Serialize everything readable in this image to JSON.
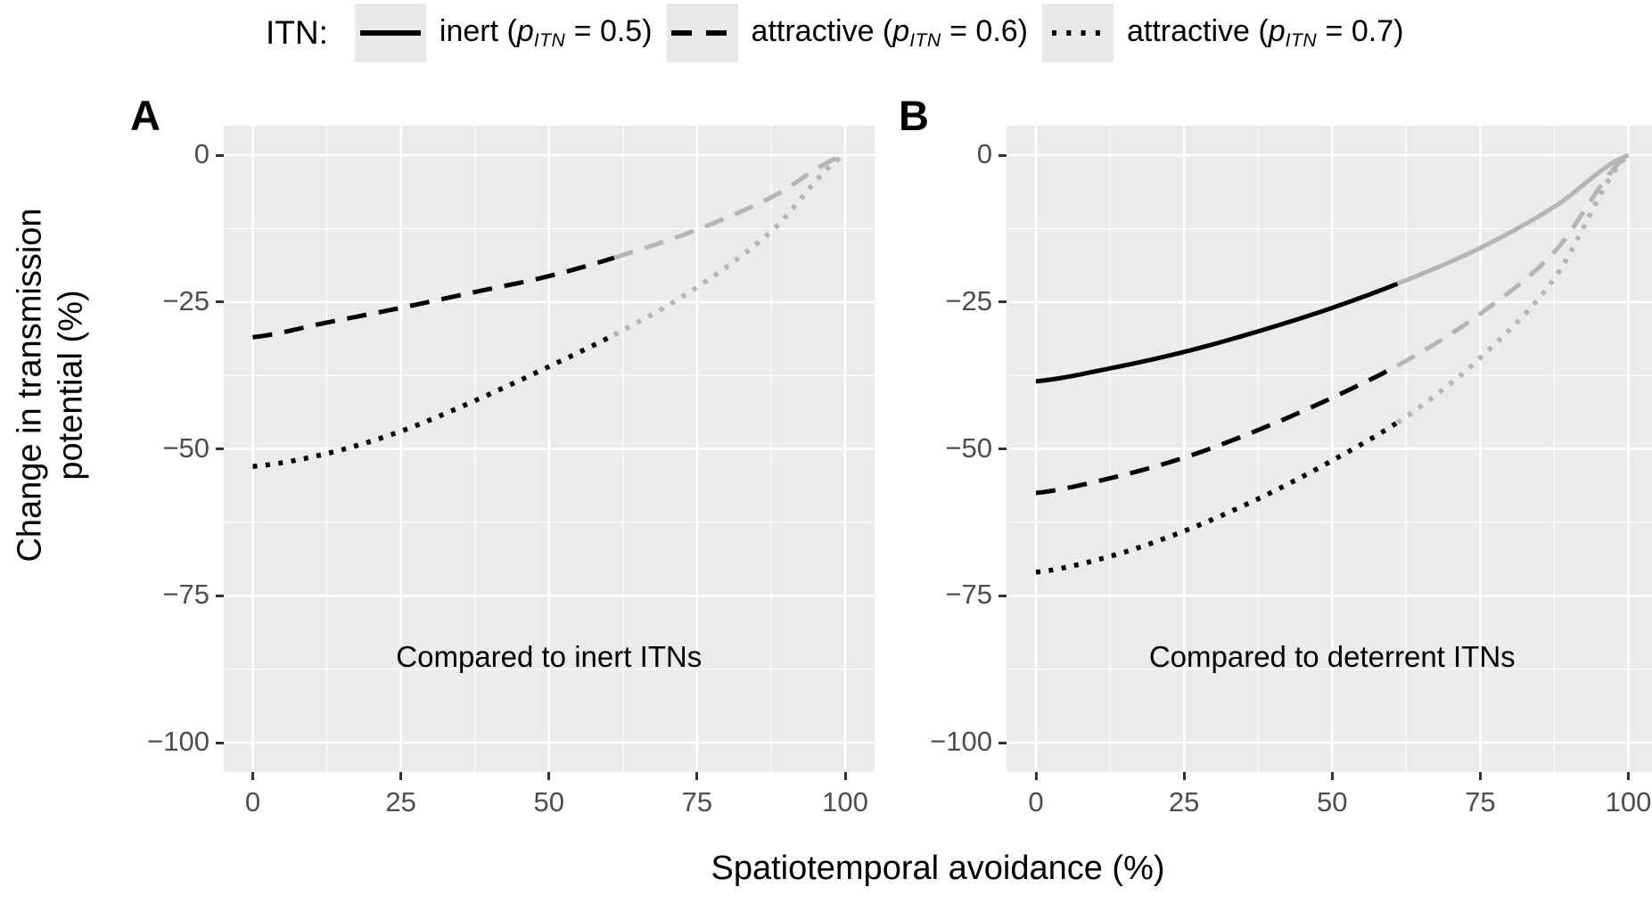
{
  "figure": {
    "xlabel": "Spatiotemporal avoidance (%)",
    "ylabel_line1": "Change in transmission",
    "ylabel_line2": "potential (%)"
  },
  "legend": {
    "title": "ITN:",
    "items": [
      {
        "style": "solid",
        "pre": "inert (",
        "sym": "p",
        "sub": "ITN",
        "post": " = 0.5)"
      },
      {
        "style": "dashed",
        "pre": "attractive (",
        "sym": "p",
        "sub": "ITN",
        "post": " = 0.6)"
      },
      {
        "style": "dotted",
        "pre": "attractive (",
        "sym": "p",
        "sub": "ITN",
        "post": " = 0.7)"
      }
    ]
  },
  "chart_data": {
    "type": "line",
    "title": "",
    "xlabel": "Spatiotemporal avoidance (%)",
    "ylabel": "Change in transmission potential (%)",
    "xlim": [
      -5,
      105
    ],
    "ylim": [
      -105,
      5
    ],
    "x_ticks": [
      0,
      25,
      50,
      75,
      100
    ],
    "y_ticks": [
      0,
      -25,
      -50,
      -75,
      -100
    ],
    "x_minor_ticks": [
      12.5,
      37.5,
      62.5,
      87.5
    ],
    "y_minor_ticks": [
      -12.5,
      -37.5,
      -62.5,
      -87.5
    ],
    "grid": true,
    "legend_position": "top",
    "black_to_gray_at_x": 61,
    "x_sample": [
      0,
      12.5,
      25,
      37.5,
      50,
      62.5,
      75,
      87.5,
      100
    ],
    "panels": [
      {
        "label": "A",
        "annotation": "Compared to inert ITNs",
        "series": [
          {
            "name": "attractive (pITN = 0.6)",
            "style": "dashed",
            "y": [
              -31,
              -28.5,
              -26,
              -23.3,
              -20.6,
              -17,
              -12.7,
              -7.2,
              0
            ]
          },
          {
            "name": "attractive (pITN = 0.7)",
            "style": "dotted",
            "y": [
              -53,
              -50.8,
              -47,
              -41.8,
              -36,
              -29.8,
              -22.5,
              -13,
              0
            ]
          }
        ]
      },
      {
        "label": "B",
        "annotation": "Compared to deterrent ITNs",
        "series": [
          {
            "name": "inert (pITN = 0.5)",
            "style": "solid",
            "y": [
              -38.5,
              -36.3,
              -33.5,
              -30,
              -26,
              -21.3,
              -15.8,
              -8.8,
              0
            ]
          },
          {
            "name": "attractive (pITN = 0.6)",
            "style": "dashed",
            "y": [
              -57.5,
              -55,
              -51.5,
              -46.8,
              -41.3,
              -35,
              -27,
              -16.5,
              0
            ]
          },
          {
            "name": "attractive (pITN = 0.7)",
            "style": "dotted",
            "y": [
              -71,
              -68.3,
              -64,
              -58.5,
              -52,
              -44.5,
              -34.5,
              -21,
              0
            ]
          }
        ]
      }
    ],
    "colors": {
      "panel_bg": "#ebebeb",
      "grid": "#ffffff",
      "curve": "#000000",
      "curve_gray": "#b5b5b5",
      "tick_text": "#4d4d4d",
      "tick_mark": "#333333",
      "legend_key_bg": "#e8e8e8"
    }
  }
}
